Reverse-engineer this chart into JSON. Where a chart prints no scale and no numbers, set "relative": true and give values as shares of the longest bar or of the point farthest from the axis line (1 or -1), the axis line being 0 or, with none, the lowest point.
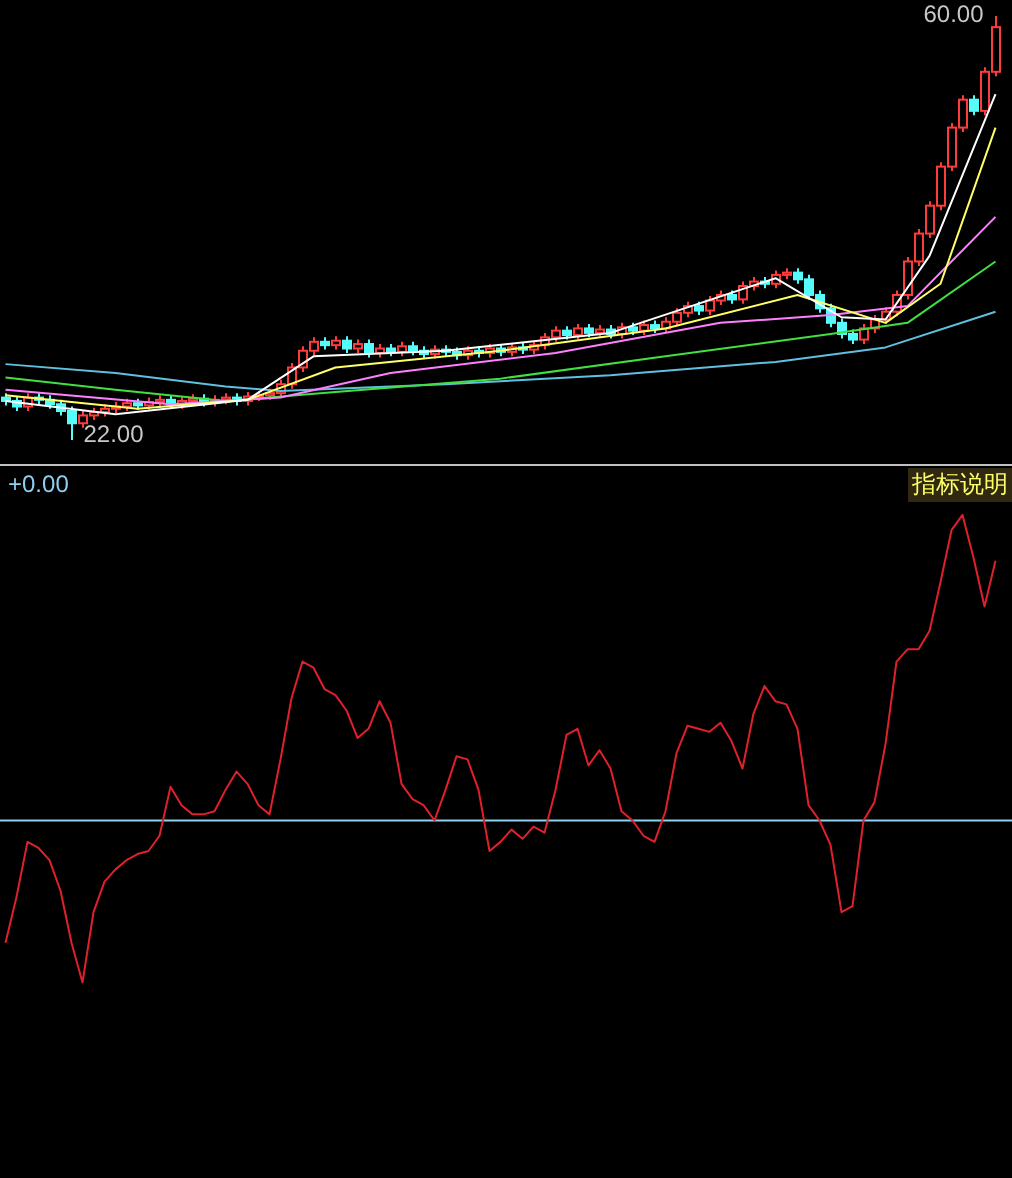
{
  "chart_data": [
    {
      "type": "candlestick",
      "categories": [
        null,
        null,
        null,
        null,
        null,
        null,
        null,
        null,
        null,
        null,
        null,
        null,
        null,
        null,
        null,
        null,
        null,
        null,
        null,
        null,
        null,
        null,
        null,
        null,
        null,
        null,
        null,
        null,
        null,
        null,
        null,
        null,
        null,
        null,
        null,
        null,
        null,
        null,
        null,
        null,
        null,
        null,
        null,
        null,
        null,
        null,
        null,
        null,
        null,
        null,
        null,
        null,
        null,
        null,
        null,
        null,
        null,
        null,
        null,
        null,
        null,
        null,
        null,
        null,
        null,
        null,
        null,
        null,
        null,
        null,
        null,
        null,
        null,
        null,
        null,
        null,
        null,
        null,
        null,
        null,
        null,
        null,
        null,
        null,
        null,
        null,
        null,
        null,
        null,
        null,
        null
      ],
      "ohlc": [
        [
          25.8,
          26.2,
          25.1,
          25.5
        ],
        [
          25.5,
          25.9,
          24.6,
          25.0
        ],
        [
          25.0,
          26.2,
          24.6,
          25.8
        ],
        [
          25.8,
          26.2,
          25.2,
          25.6
        ],
        [
          25.6,
          26.0,
          24.8,
          25.2
        ],
        [
          25.2,
          25.6,
          24.2,
          24.6
        ],
        [
          24.6,
          25.0,
          22.0,
          23.5
        ],
        [
          23.5,
          24.6,
          23.1,
          24.2
        ],
        [
          24.2,
          24.9,
          23.8,
          24.5
        ],
        [
          24.5,
          25.2,
          24.1,
          24.8
        ],
        [
          24.8,
          25.4,
          24.4,
          25.0
        ],
        [
          25.0,
          25.7,
          24.6,
          25.3
        ],
        [
          25.3,
          25.7,
          24.7,
          25.1
        ],
        [
          25.1,
          25.8,
          24.7,
          25.4
        ],
        [
          25.4,
          26.0,
          25.0,
          25.6
        ],
        [
          25.6,
          26.0,
          24.8,
          25.2
        ],
        [
          25.2,
          25.9,
          24.8,
          25.5
        ],
        [
          25.5,
          26.1,
          25.1,
          25.7
        ],
        [
          25.7,
          26.1,
          25.0,
          25.4
        ],
        [
          25.4,
          26.0,
          25.0,
          25.6
        ],
        [
          25.6,
          26.2,
          25.2,
          25.8
        ],
        [
          25.8,
          26.2,
          25.1,
          25.5
        ],
        [
          25.5,
          26.3,
          25.1,
          25.9
        ],
        [
          25.9,
          26.4,
          25.5,
          26.0
        ],
        [
          26.0,
          26.6,
          25.6,
          26.2
        ],
        [
          26.2,
          27.4,
          25.8,
          27.0
        ],
        [
          27.0,
          28.9,
          26.6,
          28.5
        ],
        [
          28.5,
          30.4,
          28.1,
          30.0
        ],
        [
          30.0,
          31.2,
          29.6,
          30.8
        ],
        [
          30.8,
          31.2,
          30.1,
          30.5
        ],
        [
          30.5,
          31.3,
          30.1,
          30.9
        ],
        [
          30.9,
          31.3,
          29.8,
          30.2
        ],
        [
          30.2,
          31.0,
          29.8,
          30.6
        ],
        [
          30.6,
          31.0,
          29.4,
          29.8
        ],
        [
          29.8,
          30.6,
          29.4,
          30.2
        ],
        [
          30.2,
          30.6,
          29.5,
          29.9
        ],
        [
          29.9,
          30.8,
          29.5,
          30.4
        ],
        [
          30.4,
          30.8,
          29.6,
          30.0
        ],
        [
          30.0,
          30.4,
          29.3,
          29.7
        ],
        [
          29.7,
          30.5,
          29.3,
          30.1
        ],
        [
          30.1,
          30.5,
          29.5,
          29.9
        ],
        [
          29.9,
          30.3,
          29.2,
          29.6
        ],
        [
          29.6,
          30.4,
          29.2,
          30.0
        ],
        [
          30.0,
          30.4,
          29.4,
          29.8
        ],
        [
          29.8,
          30.6,
          29.4,
          30.2
        ],
        [
          30.2,
          30.6,
          29.5,
          29.9
        ],
        [
          29.9,
          30.7,
          29.5,
          30.3
        ],
        [
          30.3,
          30.7,
          29.7,
          30.1
        ],
        [
          30.1,
          30.9,
          29.7,
          30.5
        ],
        [
          30.5,
          31.6,
          30.1,
          31.2
        ],
        [
          31.2,
          32.2,
          30.8,
          31.8
        ],
        [
          31.8,
          32.2,
          31.0,
          31.4
        ],
        [
          31.4,
          32.4,
          31.0,
          32.0
        ],
        [
          32.0,
          32.4,
          31.2,
          31.6
        ],
        [
          31.6,
          32.3,
          31.2,
          31.9
        ],
        [
          31.9,
          32.3,
          31.1,
          31.5
        ],
        [
          31.5,
          32.5,
          31.1,
          32.1
        ],
        [
          32.1,
          32.5,
          31.4,
          31.8
        ],
        [
          31.8,
          32.7,
          31.4,
          32.3
        ],
        [
          32.3,
          32.7,
          31.6,
          32.0
        ],
        [
          32.0,
          33.0,
          31.6,
          32.6
        ],
        [
          32.6,
          33.8,
          32.2,
          33.4
        ],
        [
          33.4,
          34.4,
          33.0,
          34.0
        ],
        [
          34.0,
          34.4,
          33.2,
          33.6
        ],
        [
          33.6,
          34.9,
          33.2,
          34.5
        ],
        [
          34.5,
          35.4,
          34.1,
          35.0
        ],
        [
          35.0,
          35.4,
          34.2,
          34.6
        ],
        [
          34.6,
          36.2,
          34.2,
          35.8
        ],
        [
          35.8,
          36.6,
          35.4,
          36.2
        ],
        [
          36.2,
          36.6,
          35.6,
          36.0
        ],
        [
          36.0,
          37.2,
          35.6,
          36.8
        ],
        [
          36.8,
          37.4,
          36.4,
          37.0
        ],
        [
          37.0,
          37.4,
          36.0,
          36.4
        ],
        [
          36.4,
          36.8,
          34.6,
          35.0
        ],
        [
          35.0,
          35.4,
          33.4,
          33.8
        ],
        [
          33.8,
          34.2,
          32.1,
          32.5
        ],
        [
          32.5,
          32.9,
          31.1,
          31.5
        ],
        [
          31.5,
          31.9,
          30.6,
          31.0
        ],
        [
          31.0,
          32.4,
          30.6,
          32.0
        ],
        [
          32.0,
          33.2,
          31.6,
          32.8
        ],
        [
          32.8,
          33.9,
          32.4,
          33.5
        ],
        [
          33.5,
          35.4,
          33.1,
          35.0
        ],
        [
          35.0,
          38.4,
          34.6,
          38.0
        ],
        [
          38.0,
          40.9,
          37.6,
          40.5
        ],
        [
          40.5,
          43.4,
          40.1,
          43.0
        ],
        [
          43.0,
          46.9,
          42.6,
          46.5
        ],
        [
          46.5,
          50.4,
          46.1,
          50.0
        ],
        [
          50.0,
          52.9,
          49.6,
          52.5
        ],
        [
          52.5,
          52.9,
          51.1,
          51.5
        ],
        [
          51.5,
          55.4,
          51.1,
          55.0
        ],
        [
          55.0,
          60.0,
          54.6,
          59.0
        ]
      ],
      "colors": [
        "#54fcfc",
        "#54fcfc",
        "#ff3c3c",
        "#54fcfc",
        "#54fcfc",
        "#54fcfc",
        "#54fcfc",
        "#ff3c3c",
        "#ff3c3c",
        "#ff3c3c",
        "#ff3c3c",
        "#ff3c3c",
        "#54fcfc",
        "#ff3c3c",
        "#ff3c3c",
        "#54fcfc",
        "#ff3c3c",
        "#ff3c3c",
        "#54fcfc",
        "#ff3c3c",
        "#ff3c3c",
        "#54fcfc",
        "#ff3c3c",
        "#ff3c3c",
        "#ff3c3c",
        "#ff3c3c",
        "#ff3c3c",
        "#ff3c3c",
        "#ff3c3c",
        "#54fcfc",
        "#ff3c3c",
        "#54fcfc",
        "#ff3c3c",
        "#54fcfc",
        "#ff3c3c",
        "#54fcfc",
        "#ff3c3c",
        "#54fcfc",
        "#54fcfc",
        "#ff3c3c",
        "#54fcfc",
        "#54fcfc",
        "#ff3c3c",
        "#54fcfc",
        "#ff3c3c",
        "#54fcfc",
        "#ff3c3c",
        "#54fcfc",
        "#ff3c3c",
        "#ff3c3c",
        "#ff3c3c",
        "#54fcfc",
        "#ff3c3c",
        "#54fcfc",
        "#ff3c3c",
        "#54fcfc",
        "#ff3c3c",
        "#54fcfc",
        "#ff3c3c",
        "#54fcfc",
        "#ff3c3c",
        "#ff3c3c",
        "#ff3c3c",
        "#54fcfc",
        "#ff3c3c",
        "#ff3c3c",
        "#54fcfc",
        "#ff3c3c",
        "#ff3c3c",
        "#54fcfc",
        "#ff3c3c",
        "#ff3c3c",
        "#54fcfc",
        "#54fcfc",
        "#54fcfc",
        "#54fcfc",
        "#54fcfc",
        "#54fcfc",
        "#ff3c3c",
        "#ff3c3c",
        "#ff3c3c",
        "#ff3c3c",
        "#ff3c3c",
        "#ff3c3c",
        "#ff3c3c",
        "#ff3c3c",
        "#ff3c3c",
        "#ff3c3c",
        "#54fcfc",
        "#ff3c3c",
        "#ff3c3c"
      ],
      "series": [
        {
          "type": "line",
          "color": "#60c0e0",
          "values": [
            28.8,
            null,
            null,
            null,
            null,
            null,
            null,
            null,
            null,
            null,
            28.0,
            null,
            null,
            null,
            null,
            null,
            null,
            null,
            null,
            null,
            26.8,
            null,
            null,
            null,
            null,
            26.4,
            null,
            null,
            null,
            null,
            null,
            null,
            null,
            null,
            null,
            null,
            null,
            null,
            null,
            null,
            27.0,
            null,
            null,
            null,
            null,
            null,
            null,
            null,
            null,
            null,
            null,
            null,
            null,
            null,
            null,
            27.8,
            null,
            null,
            null,
            null,
            null,
            null,
            null,
            null,
            null,
            null,
            null,
            null,
            null,
            null,
            29.0,
            null,
            null,
            null,
            null,
            null,
            null,
            null,
            null,
            null,
            30.3,
            null,
            null,
            null,
            null,
            null,
            null,
            null,
            null,
            null,
            33.5
          ]
        },
        {
          "type": "line",
          "color": "#40e040",
          "values": [
            27.6,
            null,
            null,
            null,
            null,
            null,
            null,
            null,
            null,
            null,
            26.5,
            null,
            null,
            null,
            null,
            null,
            null,
            null,
            null,
            null,
            25.5,
            null,
            null,
            null,
            null,
            null,
            null,
            null,
            null,
            null,
            26.3,
            null,
            null,
            null,
            null,
            null,
            null,
            null,
            null,
            null,
            null,
            null,
            null,
            null,
            null,
            27.5,
            null,
            null,
            null,
            null,
            null,
            null,
            null,
            null,
            null,
            null,
            null,
            null,
            null,
            null,
            29.5,
            null,
            null,
            null,
            null,
            null,
            null,
            null,
            null,
            null,
            null,
            null,
            null,
            null,
            null,
            31.5,
            null,
            null,
            null,
            null,
            null,
            null,
            32.5,
            null,
            null,
            null,
            null,
            null,
            null,
            null,
            38.0
          ]
        },
        {
          "type": "line",
          "color": "#ff80ff",
          "values": [
            26.5,
            null,
            null,
            null,
            null,
            null,
            null,
            null,
            null,
            null,
            null,
            null,
            null,
            null,
            null,
            25.2,
            null,
            null,
            null,
            null,
            null,
            null,
            null,
            null,
            null,
            25.8,
            null,
            null,
            null,
            null,
            null,
            null,
            null,
            null,
            null,
            28.0,
            null,
            null,
            null,
            null,
            null,
            null,
            null,
            null,
            null,
            null,
            null,
            null,
            null,
            null,
            29.8,
            null,
            null,
            null,
            null,
            null,
            null,
            null,
            null,
            null,
            null,
            null,
            null,
            null,
            null,
            32.5,
            null,
            null,
            null,
            null,
            null,
            null,
            null,
            null,
            null,
            33.2,
            null,
            null,
            null,
            null,
            null,
            null,
            34.0,
            null,
            null,
            null,
            null,
            null,
            null,
            null,
            42.0
          ]
        },
        {
          "type": "line",
          "color": "#ffff66",
          "values": [
            26.0,
            null,
            null,
            null,
            null,
            null,
            null,
            null,
            null,
            null,
            null,
            null,
            24.8,
            null,
            null,
            null,
            null,
            null,
            null,
            null,
            null,
            null,
            25.6,
            null,
            null,
            null,
            null,
            null,
            null,
            null,
            28.5,
            null,
            null,
            null,
            null,
            null,
            null,
            null,
            null,
            null,
            null,
            null,
            null,
            null,
            null,
            30.0,
            null,
            null,
            null,
            null,
            null,
            null,
            null,
            null,
            null,
            null,
            null,
            null,
            null,
            null,
            32.0,
            null,
            null,
            null,
            null,
            null,
            null,
            null,
            null,
            null,
            null,
            null,
            35.0,
            null,
            null,
            null,
            null,
            null,
            null,
            null,
            32.5,
            null,
            null,
            null,
            null,
            36.0,
            null,
            null,
            null,
            null,
            50.0
          ]
        },
        {
          "type": "line",
          "color": "#ffffff",
          "values": [
            25.5,
            null,
            null,
            null,
            null,
            null,
            null,
            null,
            null,
            null,
            24.3,
            null,
            null,
            null,
            null,
            null,
            null,
            null,
            null,
            null,
            null,
            null,
            25.6,
            null,
            null,
            null,
            null,
            null,
            29.5,
            null,
            null,
            null,
            null,
            null,
            null,
            null,
            null,
            null,
            null,
            null,
            30.0,
            null,
            null,
            null,
            null,
            null,
            null,
            null,
            null,
            null,
            null,
            null,
            null,
            null,
            null,
            31.6,
            null,
            null,
            null,
            null,
            null,
            null,
            null,
            null,
            null,
            null,
            null,
            null,
            null,
            null,
            36.5,
            null,
            null,
            null,
            null,
            null,
            33.0,
            null,
            null,
            null,
            32.8,
            null,
            null,
            null,
            38.5,
            null,
            null,
            null,
            null,
            null,
            53.0
          ]
        }
      ],
      "annotations": [
        "60.00",
        "22.00"
      ]
    },
    {
      "type": "line",
      "relative": true,
      "categories": [
        null,
        null,
        null,
        null,
        null,
        null,
        null,
        null,
        null,
        null,
        null,
        null,
        null,
        null,
        null,
        null,
        null,
        null,
        null,
        null,
        null,
        null,
        null,
        null,
        null,
        null,
        null,
        null,
        null,
        null,
        null,
        null,
        null,
        null,
        null,
        null,
        null,
        null,
        null,
        null,
        null,
        null,
        null,
        null,
        null,
        null,
        null,
        null,
        null,
        null,
        null,
        null,
        null,
        null,
        null,
        null,
        null,
        null,
        null,
        null,
        null,
        null,
        null,
        null,
        null,
        null,
        null,
        null,
        null,
        null,
        null,
        null,
        null,
        null,
        null,
        null,
        null,
        null,
        null,
        null,
        null,
        null,
        null,
        null,
        null,
        null,
        null,
        null,
        null,
        null,
        null
      ],
      "series": [
        {
          "color": "#e0202a",
          "values": [
            -0.4,
            -0.25,
            -0.07,
            -0.09,
            -0.13,
            -0.23,
            -0.4,
            -0.53,
            -0.3,
            -0.2,
            -0.16,
            -0.13,
            -0.11,
            -0.1,
            -0.05,
            0.11,
            0.05,
            0.02,
            0.02,
            0.03,
            0.1,
            0.16,
            0.12,
            0.05,
            0.02,
            0.2,
            0.4,
            0.52,
            0.5,
            0.43,
            0.41,
            0.36,
            0.27,
            0.3,
            0.39,
            0.32,
            0.12,
            0.07,
            0.05,
            0.0,
            0.1,
            0.21,
            0.2,
            0.1,
            -0.1,
            -0.07,
            -0.03,
            -0.06,
            -0.02,
            -0.04,
            0.1,
            0.28,
            0.3,
            0.18,
            0.23,
            0.17,
            0.03,
            0.0,
            -0.05,
            -0.07,
            0.03,
            0.22,
            0.31,
            0.3,
            0.29,
            0.32,
            0.26,
            0.17,
            0.35,
            0.44,
            0.39,
            0.38,
            0.3,
            0.05,
            0.0,
            -0.08,
            -0.3,
            -0.28,
            0.0,
            0.06,
            0.25,
            0.52,
            0.56,
            0.56,
            0.62,
            0.78,
            0.95,
            1.0,
            0.86,
            0.7,
            0.85
          ]
        }
      ],
      "ref_lines": [
        {
          "axis": "y",
          "value": 0,
          "color": "#8fd0f0"
        }
      ],
      "annotations": [
        "+0.00",
        "指标说明"
      ]
    }
  ]
}
